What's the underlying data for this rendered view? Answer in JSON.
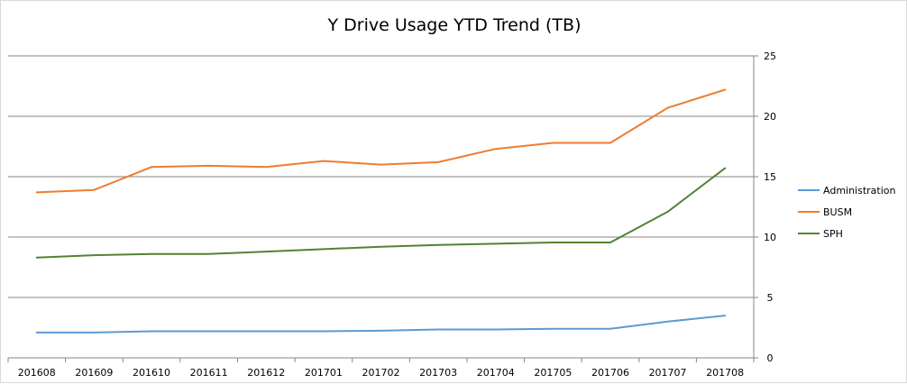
{
  "chart_data": {
    "type": "line",
    "title": "Y Drive Usage YTD Trend (TB)",
    "xlabel": "",
    "ylabel": "",
    "categories": [
      "201608",
      "201609",
      "201610",
      "201611",
      "201612",
      "201701",
      "201702",
      "201703",
      "201704",
      "201705",
      "201706",
      "201707",
      "201708"
    ],
    "ylim": [
      0,
      25
    ],
    "yticks": [
      0,
      5,
      10,
      15,
      20,
      25
    ],
    "y_axis_side": "right",
    "grid": true,
    "legend_position": "right",
    "series": [
      {
        "name": "Administration",
        "color": "#5b9bd5",
        "values": [
          2.1,
          2.1,
          2.2,
          2.2,
          2.2,
          2.2,
          2.25,
          2.35,
          2.35,
          2.4,
          2.4,
          3.0,
          3.5
        ]
      },
      {
        "name": "BUSM",
        "color": "#ed7d31",
        "values": [
          13.7,
          13.9,
          15.8,
          15.9,
          15.8,
          16.3,
          16.0,
          16.2,
          17.3,
          17.8,
          17.8,
          20.7,
          22.2
        ]
      },
      {
        "name": "SPH",
        "color": "#548235",
        "values": [
          8.3,
          8.5,
          8.6,
          8.6,
          8.8,
          9.0,
          9.2,
          9.35,
          9.45,
          9.55,
          9.55,
          12.1,
          15.7
        ]
      }
    ]
  }
}
